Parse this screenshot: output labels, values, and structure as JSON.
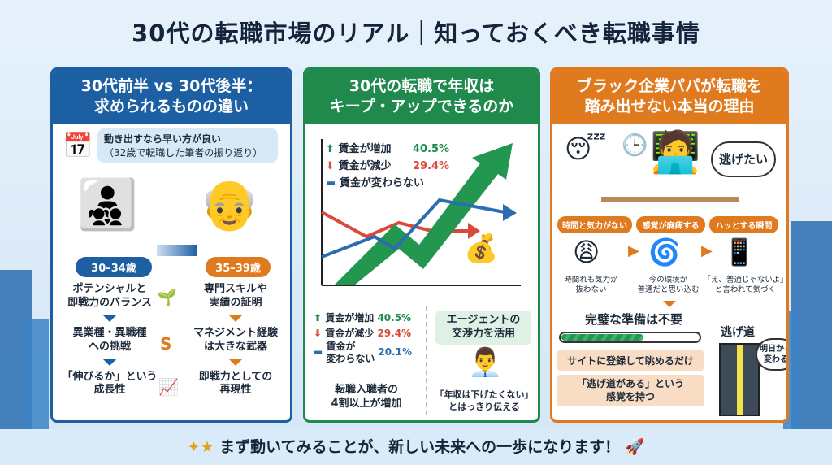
{
  "title": "30代の転職市場のリアル｜知っておくべき転職事情",
  "panel1": {
    "header": [
      "30代前半 vs 30代後半：",
      "求められるものの違い"
    ],
    "bubble": [
      "動き出すなら早い方が良い",
      "（32歳で転職した筆者の振り返り）"
    ],
    "age_early": "30–34歳",
    "age_late": "35–39歳",
    "early": [
      [
        "ポテンシャルと",
        "即戦力のバランス"
      ],
      [
        "異業種・異職種",
        "への挑戦"
      ],
      [
        "「伸びるか」という",
        "成長性"
      ]
    ],
    "late": [
      [
        "専門スキルや",
        "実績の証明"
      ],
      [
        "マネジメント経験",
        "は大きな武器"
      ],
      [
        "即戦力としての",
        "再現性"
      ]
    ],
    "colors": {
      "early": "#1d5fa3",
      "late": "#e07a1f"
    }
  },
  "panel2": {
    "header": [
      "30代の転職で年収は",
      "キープ・アップできるのか"
    ],
    "legend": [
      {
        "label": "賃金が増加",
        "value": "40.5%",
        "color": "#1f8a4c"
      },
      {
        "label": "賃金が減少",
        "value": "29.4%",
        "color": "#d94a3a"
      },
      {
        "label": "賃金が変わらない",
        "color": "#2a6db0"
      }
    ],
    "stats": [
      {
        "label": "賃金が増加",
        "value": "40.5%"
      },
      {
        "label": "賃金が減少",
        "value": "29.4%"
      },
      {
        "label": [
          "賃金が",
          "変わらない"
        ],
        "value": "20.1%"
      }
    ],
    "summary": [
      "転職入職者の",
      "4割以上が増加"
    ],
    "agent_title": [
      "エージェントの",
      "交渉力を活用"
    ],
    "agent_quote": [
      "「年収は下げたくない」",
      "とはっきり伝える"
    ]
  },
  "panel3": {
    "header": [
      "ブラック企業パパが転職を",
      "踏み出せない本当の理由"
    ],
    "thought": "逃げたい",
    "tags": [
      "時間と気力がない",
      "感覚が麻痺する",
      "ハッとする瞬間"
    ],
    "captions": [
      [
        "時間れも気力が",
        "抜わない"
      ],
      [
        "今の環境が",
        "普通だと思い込む"
      ],
      [
        "「え、普通じゃないよ」",
        "と言われて気づく"
      ]
    ],
    "conclusion": "完璧な準備は不要",
    "progress": 0.6,
    "steps": [
      "サイトに登録して眺めるだけ",
      [
        "「逃げ道がある」という",
        "感覚を持つ"
      ]
    ],
    "door_label": "逃げ道",
    "door_bubble": [
      "明日から",
      "変わる"
    ]
  },
  "footer": "まず動いてみることが、新しい未来への一歩になります！"
}
